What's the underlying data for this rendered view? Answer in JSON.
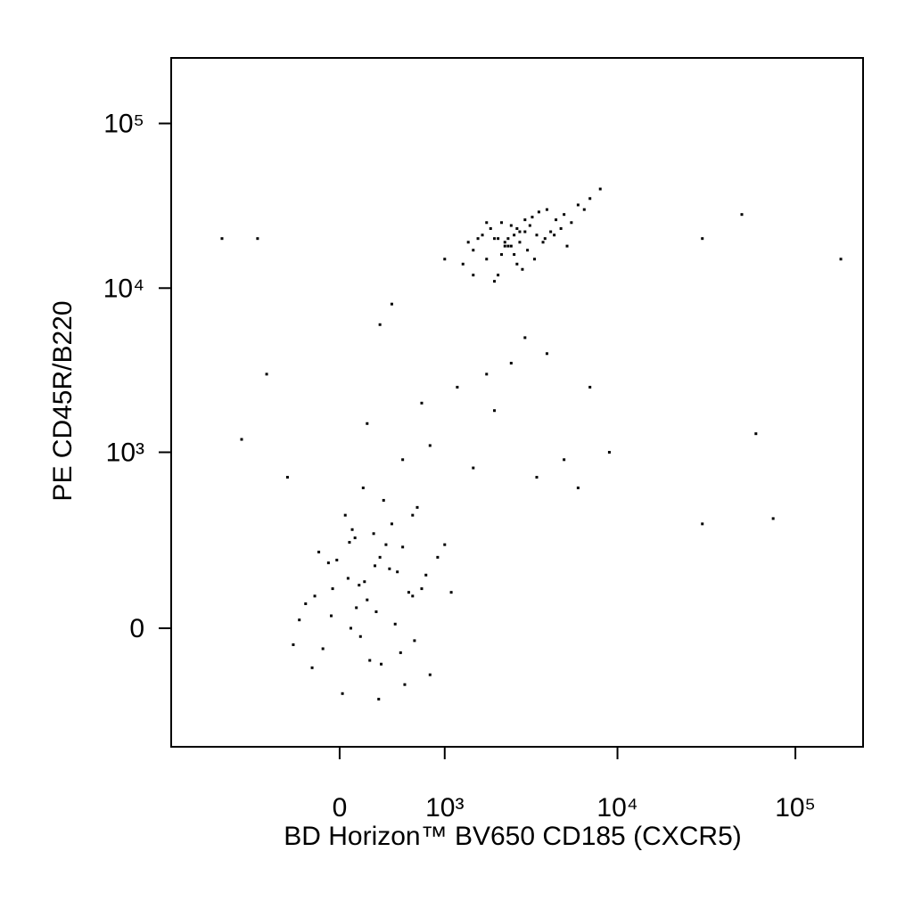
{
  "chart_data": {
    "type": "scatter",
    "xlabel": "BD Horizon™ BV650 CD185 (CXCR5)",
    "ylabel": "PE CD45R/B220",
    "xscale": "biexponential",
    "yscale": "biexponential",
    "xlim": [
      -2400,
      240000
    ],
    "ylim": [
      -435,
      250000
    ],
    "xticks": [
      0,
      {
        "value": 1000,
        "label": "10³"
      },
      {
        "value": 10000,
        "label": "10⁴"
      },
      {
        "value": 100000,
        "label": "10⁵"
      }
    ],
    "yticks": [
      0,
      {
        "value": 1000,
        "label": "10³"
      },
      {
        "value": 10000,
        "label": "10⁴"
      },
      {
        "value": 100000,
        "label": "10⁵"
      }
    ],
    "color": "#000000",
    "x": [
      -50,
      120,
      300,
      -200,
      450,
      80,
      250,
      600,
      -120,
      350,
      180,
      -300,
      520,
      40,
      700,
      220,
      -80,
      400,
      150,
      900,
      -250,
      330,
      60,
      480,
      270,
      -150,
      800,
      110,
      560,
      20,
      380,
      -60,
      650,
      200,
      1000,
      -350,
      290,
      140,
      430,
      90,
      750,
      -20,
      310,
      500,
      170,
      -180,
      620,
      260,
      1100,
      70,
      200,
      -600,
      1500,
      700,
      3000,
      5000,
      -900,
      400,
      2500,
      6000,
      1200,
      -400,
      800,
      4000,
      9000,
      -1200,
      300,
      2000,
      600,
      1800,
      7000,
      1000,
      -700,
      3500,
      500,
      2000,
      2500,
      3000,
      1800,
      2200,
      2800,
      3500,
      4000,
      1500,
      5000,
      2600,
      3200,
      2100,
      6000,
      2400,
      1900,
      4500,
      2700,
      3800,
      1700,
      5500,
      2300,
      3300,
      2900,
      1600,
      4200,
      2000,
      7000,
      2500,
      3100,
      1400,
      3600,
      2200,
      4800,
      2600,
      1300,
      6500,
      3000,
      2400,
      3900,
      2800,
      1800,
      5200,
      2100,
      3400,
      2700,
      1500,
      4400,
      8000,
      2300,
      30000,
      50000,
      180000,
      60000,
      75000,
      30000
    ],
    "values": [
      100,
      50,
      200,
      -100,
      150,
      0,
      300,
      80,
      -50,
      250,
      120,
      20,
      -150,
      400,
      100,
      -80,
      180,
      350,
      -20,
      200,
      60,
      500,
      130,
      -60,
      40,
      220,
      -120,
      280,
      90,
      -180,
      160,
      30,
      450,
      70,
      250,
      -40,
      -200,
      110,
      10,
      320,
      140,
      190,
      -90,
      240,
      600,
      80,
      -30,
      170,
      90,
      260,
      1500,
      3000,
      800,
      2000,
      5000,
      900,
      1200,
      8000,
      3500,
      600,
      2500,
      700,
      1100,
      4000,
      1000,
      20000,
      6000,
      1800,
      400,
      3000,
      2500,
      15000,
      20000,
      700,
      900,
      20000,
      18000,
      22000,
      15000,
      25000,
      19000,
      21000,
      30000,
      17000,
      28000,
      16000,
      24000,
      12000,
      32000,
      20000,
      23000,
      26000,
      14000,
      19000,
      21000,
      25000,
      18000,
      27000,
      13000,
      20000,
      22000,
      11000,
      35000,
      24000,
      17000,
      19000,
      29000,
      16000,
      23000,
      21000,
      14000,
      30000,
      26000,
      18000,
      20000,
      22000,
      25000,
      18000,
      20000,
      15000,
      23000,
      12000,
      21000,
      40000,
      19000,
      20000,
      28000,
      15000,
      1300,
      380,
      350
    ]
  }
}
